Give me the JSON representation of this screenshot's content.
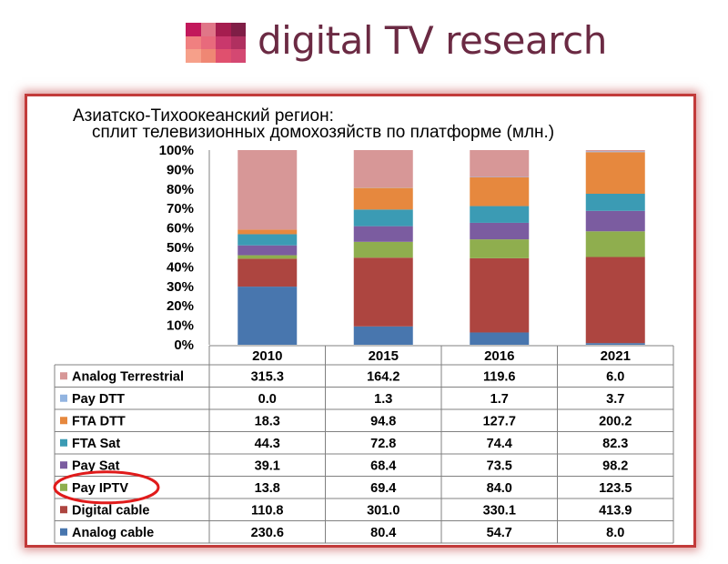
{
  "header": {
    "brand": "digital TV research",
    "logo_colors": [
      "#c2185b",
      "#e07688",
      "#a51d4f",
      "#7f1e46",
      "#f08080",
      "#e86a7c",
      "#c9386c",
      "#b03060",
      "#f6a08a",
      "#ef8774",
      "#e0506e",
      "#d44872"
    ]
  },
  "chart_data": {
    "type": "stacked-bar-100",
    "title_line1": "Азиатско-Тихоокеанский регион:",
    "title_line2": "сплит телевизионных домохозяйств по платформе (млн.)",
    "yticks": [
      "0%",
      "10%",
      "20%",
      "30%",
      "40%",
      "50%",
      "60%",
      "70%",
      "80%",
      "90%",
      "100%"
    ],
    "ylim": [
      0,
      100
    ],
    "categories": [
      "2010",
      "2015",
      "2016",
      "2021"
    ],
    "series": [
      {
        "name": "Analog Terrestrial",
        "color": "#d79797",
        "values": [
          315.3,
          164.2,
          119.6,
          6.0
        ]
      },
      {
        "name": "Pay DTT",
        "color": "#92b4e0",
        "values": [
          0.0,
          1.3,
          1.7,
          3.7
        ]
      },
      {
        "name": "FTA DTT",
        "color": "#e6883e",
        "values": [
          18.3,
          94.8,
          127.7,
          200.2
        ]
      },
      {
        "name": "FTA Sat",
        "color": "#3b9bb4",
        "values": [
          44.3,
          72.8,
          74.4,
          82.3
        ]
      },
      {
        "name": "Pay Sat",
        "color": "#7b5ca0",
        "values": [
          39.1,
          68.4,
          73.5,
          98.2
        ]
      },
      {
        "name": "Pay IPTV",
        "color": "#8fae4e",
        "values": [
          13.8,
          69.4,
          84.0,
          123.5
        ]
      },
      {
        "name": "Digital cable",
        "color": "#ad4540",
        "values": [
          110.8,
          301.0,
          330.1,
          413.9
        ]
      },
      {
        "name": "Analog cable",
        "color": "#4876ae",
        "values": [
          230.6,
          80.4,
          54.7,
          8.0
        ]
      }
    ],
    "legend": "table-below",
    "grid": false,
    "highlight": "Pay IPTV"
  }
}
